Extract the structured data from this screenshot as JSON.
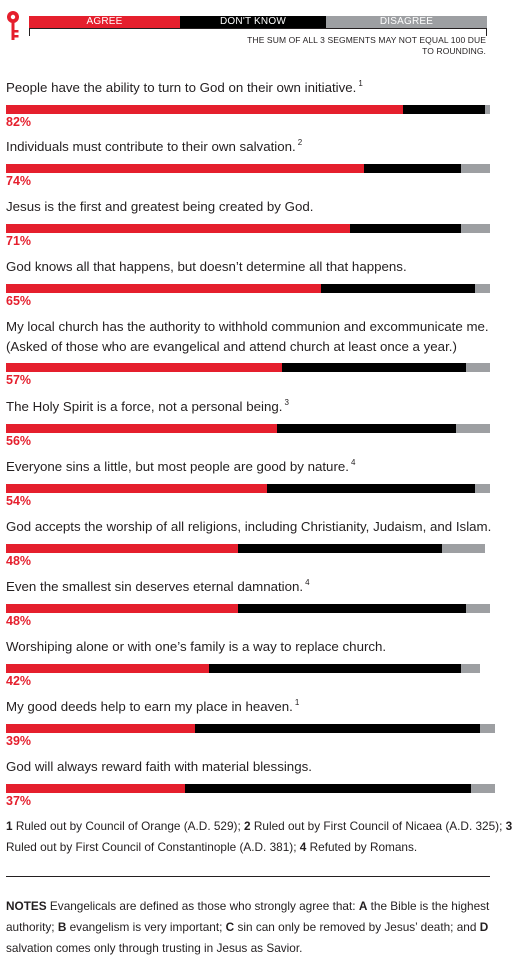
{
  "colors": {
    "agree": "#e51f2d",
    "dont_know": "#000000",
    "disagree": "#9d9fa2",
    "text": "#231f20"
  },
  "key": {
    "icon": "key-icon",
    "agree_label": "AGREE",
    "dont_know_label": "DON'T KNOW",
    "disagree_label": "DISAGREE",
    "note": "THE SUM OF ALL 3 SEGMENTS MAY NOT EQUAL 100 DUE TO ROUNDING."
  },
  "chart_data": {
    "type": "bar",
    "orientation": "horizontal",
    "stacked": true,
    "xlim": [
      0,
      100
    ],
    "legend_placement": "top",
    "categories": [
      "People have the ability to turn to God on their own initiative.",
      "Individuals must contribute to their own salvation.",
      "Jesus is the first and greatest being created by God.",
      "God knows all that happens, but doesn’t determine all that happens.",
      "My local church has the authority to withhold communion and excommunicate me. (Asked of those who are evangelical and attend church at least once a year.)",
      "The Holy Spirit is a force, not a personal being.",
      "Everyone sins a little, but most people are good by nature.",
      "God accepts the worship of all religions, including Christianity, Judaism, and Islam.",
      "Even the smallest sin deserves eternal damnation.",
      "Worshiping alone or with one’s family is a way to replace church.",
      "My good deeds help to earn my place in heaven.",
      "God will always reward faith with material blessings."
    ],
    "footnote_refs": [
      "1",
      "2",
      "",
      "",
      "",
      "3",
      "4",
      "",
      "4",
      "",
      "1",
      ""
    ],
    "series": [
      {
        "name": "AGREE",
        "values": [
          82,
          74,
          71,
          65,
          57,
          56,
          54,
          48,
          48,
          42,
          39,
          37
        ]
      },
      {
        "name": "DON'T KNOW",
        "values": [
          17,
          20,
          23,
          32,
          38,
          37,
          43,
          42,
          47,
          52,
          59,
          59
        ]
      },
      {
        "name": "DISAGREE",
        "values": [
          1,
          6,
          6,
          3,
          5,
          7,
          3,
          9,
          5,
          4,
          3,
          5
        ]
      }
    ],
    "value_labels": [
      "82%",
      "74%",
      "71%",
      "65%",
      "57%",
      "56%",
      "54%",
      "48%",
      "48%",
      "42%",
      "39%",
      "37%"
    ]
  },
  "footnotes": [
    {
      "num": "1",
      "text": "Ruled out by Council of Orange (A.D. 529);"
    },
    {
      "num": "2",
      "text": "Ruled out by First Council of Nicaea (A.D. 325);"
    },
    {
      "num": "3",
      "text": "Ruled out by First Council of Constantinople (A.D. 381);"
    },
    {
      "num": "4",
      "text": "Refuted by Romans."
    }
  ],
  "notes": {
    "label": "NOTES",
    "intro": "Evangelicals are defined as those who strongly agree that:",
    "items": [
      {
        "letter": "A",
        "text": "the Bible is the highest authority;"
      },
      {
        "letter": "B",
        "text": "evangelism is very important;"
      },
      {
        "letter": "C",
        "text": "sin can only be removed by Jesus’ death; and"
      },
      {
        "letter": "D",
        "text": "salvation comes only through trusting in Jesus as Savior."
      }
    ]
  }
}
